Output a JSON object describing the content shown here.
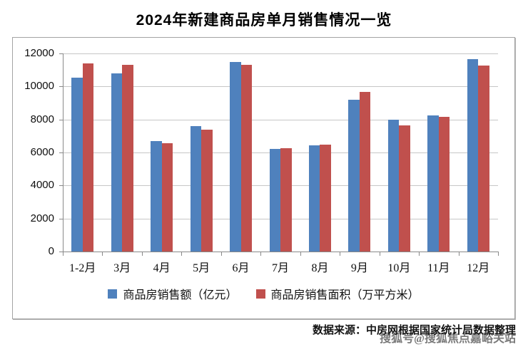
{
  "page": {
    "title": "2024年新建商品房单月销售情况一览",
    "footer": {
      "source_text": "数据来源：中房网根据国家统计局数据整理",
      "watermark": "搜狐号@搜狐焦点嘉峪关站"
    }
  },
  "chart_data": {
    "type": "bar",
    "title": "2024年新建商品房单月销售情况一览",
    "categories": [
      "1-2月",
      "3月",
      "4月",
      "5月",
      "6月",
      "7月",
      "8月",
      "9月",
      "10月",
      "11月",
      "12月"
    ],
    "series": [
      {
        "name": "商品房销售额（亿元）",
        "color": "#4F81BD",
        "values": [
          10550,
          10800,
          6700,
          7600,
          11470,
          6210,
          6420,
          9180,
          7990,
          8260,
          11650
        ]
      },
      {
        "name": "商品房销售面积（万平方米）",
        "color": "#C0504D",
        "values": [
          11400,
          11300,
          6580,
          7400,
          11290,
          6250,
          6470,
          9680,
          7650,
          8160,
          11250
        ]
      }
    ],
    "xlabel": "",
    "ylabel": "",
    "ylim": [
      0,
      12000
    ],
    "ytick_step": 2000,
    "yticks": [
      0,
      2000,
      4000,
      6000,
      8000,
      10000,
      12000
    ],
    "grid": true,
    "legend_position": "bottom",
    "colors": {
      "gridline": "#c6c6c6",
      "axis": "#898989",
      "chart_border": "#a3a3a3",
      "title_text": "#000000",
      "watermark_text": "#6f6f6f"
    }
  }
}
